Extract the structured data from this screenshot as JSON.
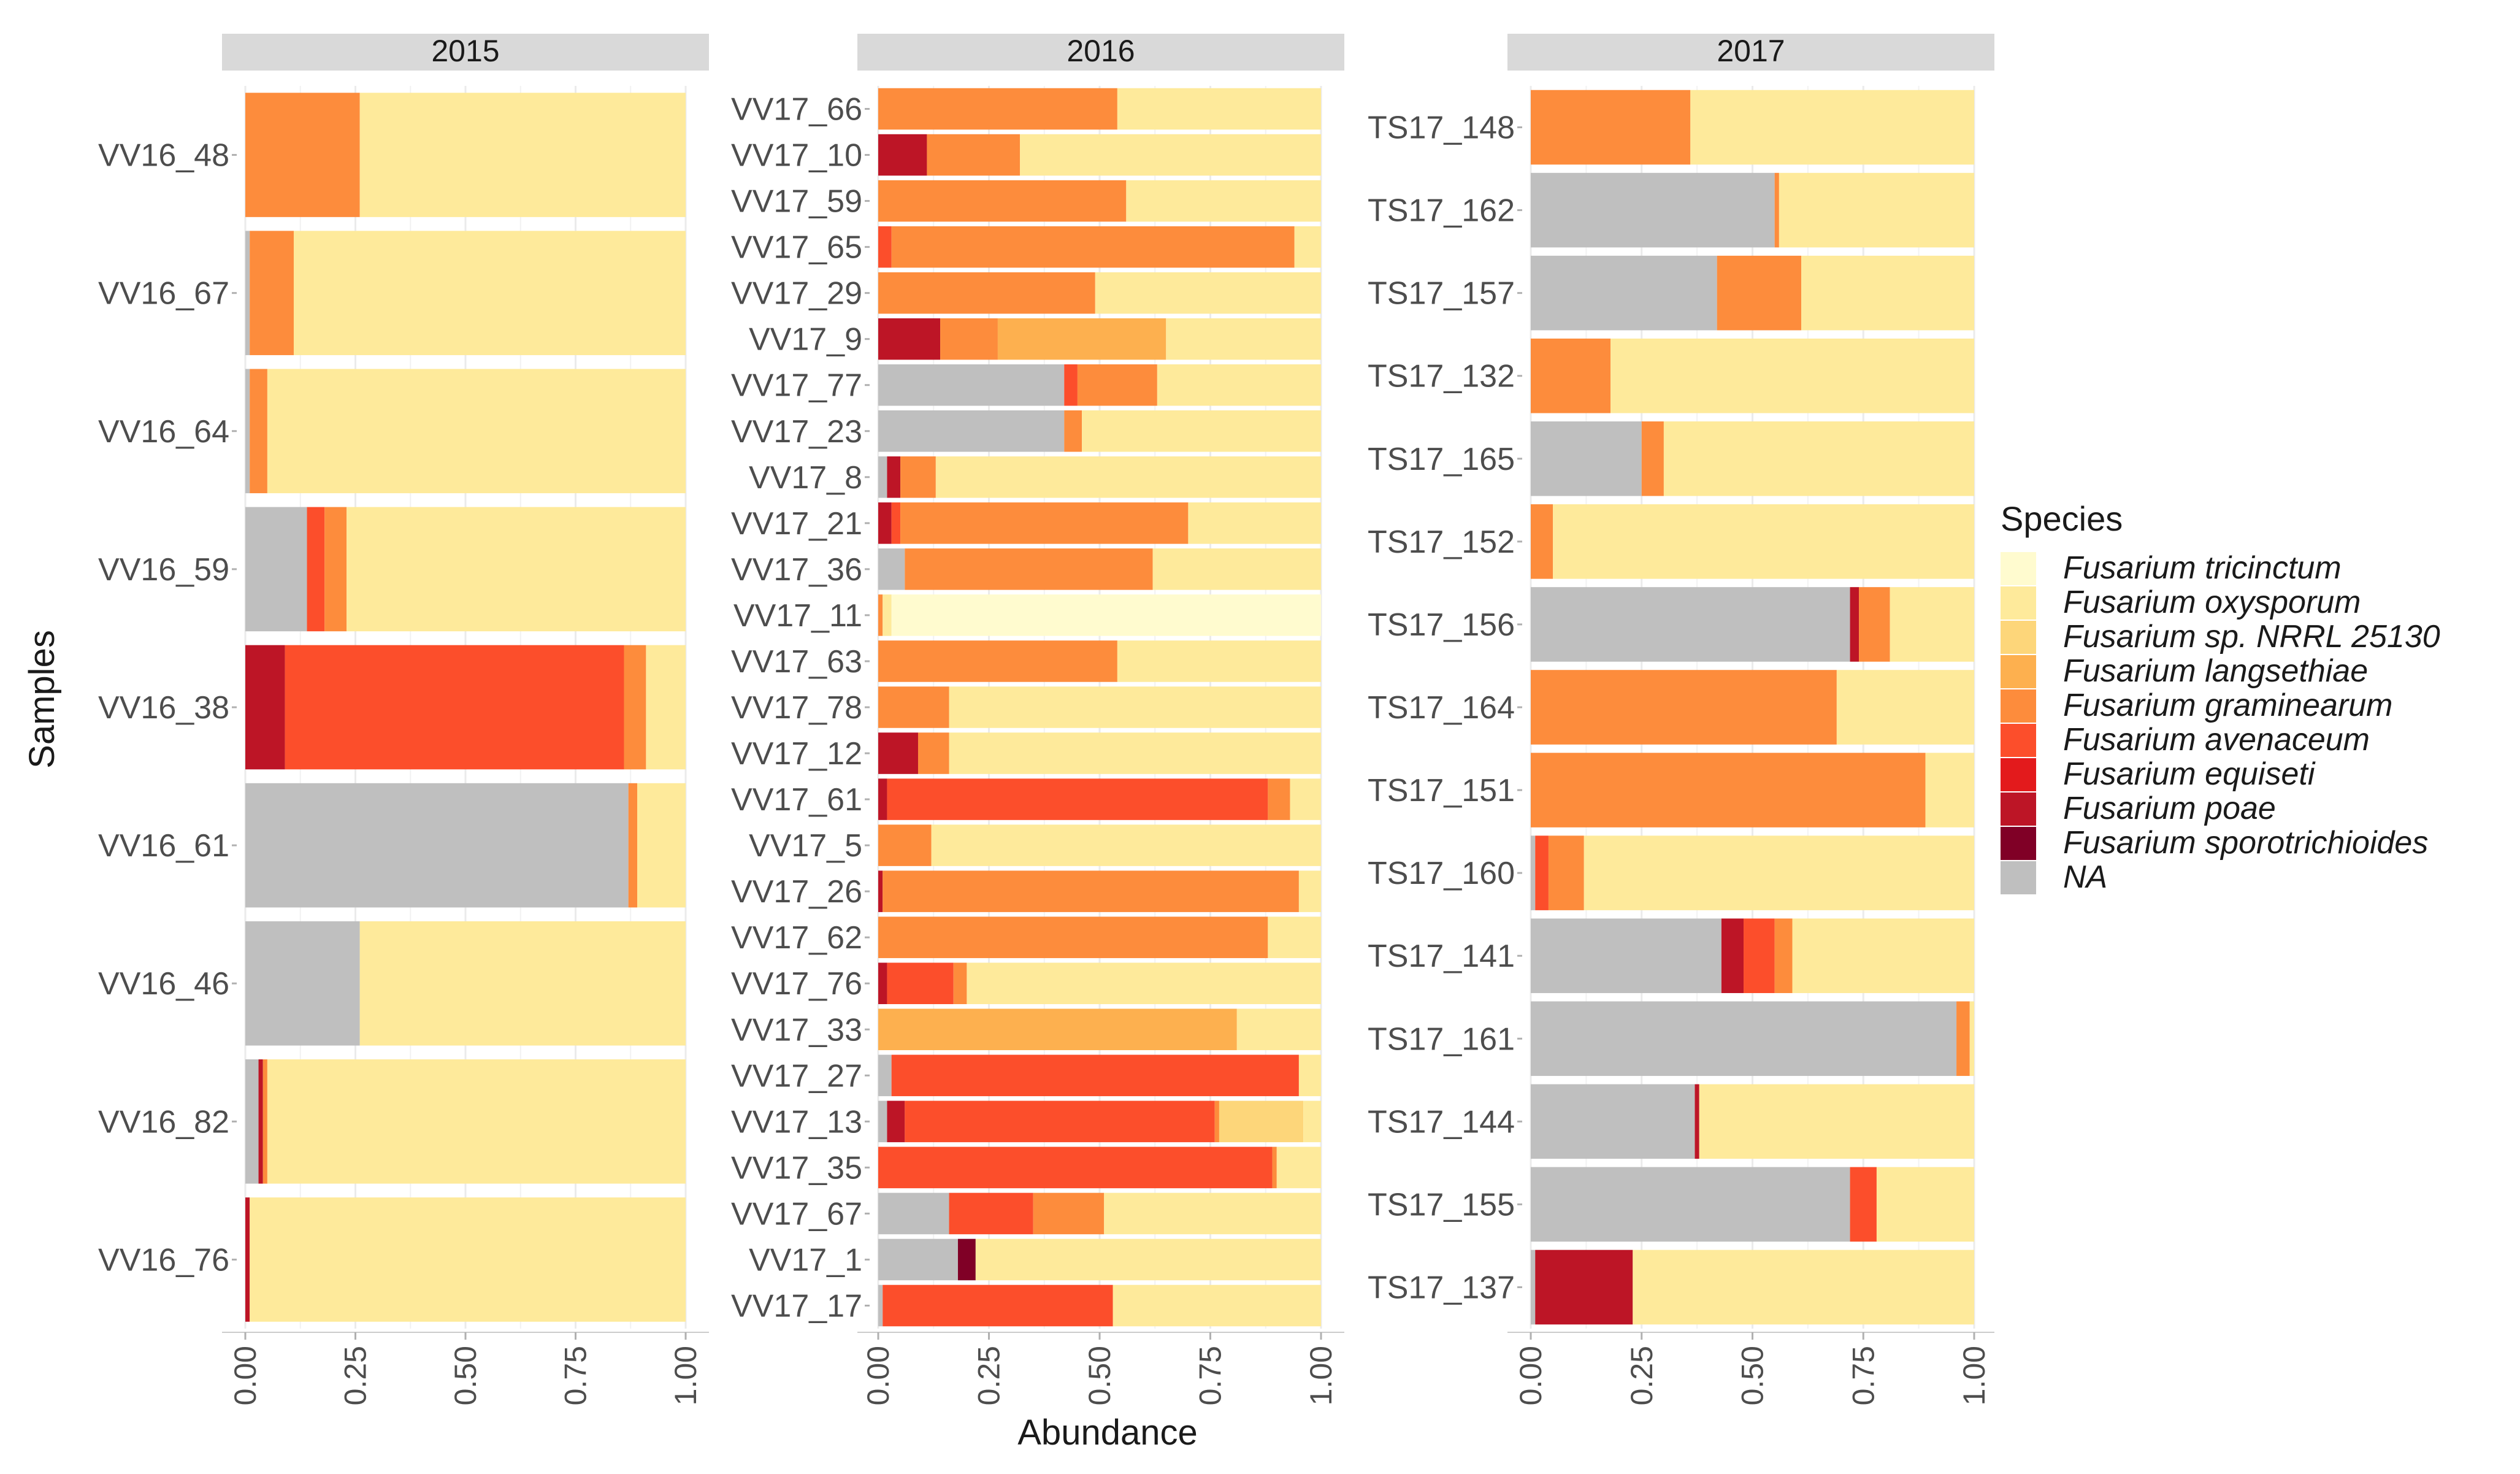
{
  "chart_data": {
    "type": "bar",
    "orientation": "horizontal",
    "stacked": true,
    "xlabel": "Abundance",
    "ylabel": "Samples",
    "xlim": [
      0,
      1
    ],
    "x_ticks": [
      "0.00",
      "0.25",
      "0.50",
      "0.75",
      "1.00"
    ],
    "grid": true,
    "legend_position": "right",
    "legend_title": "Species",
    "species": [
      {
        "name": "Fusarium tricinctum",
        "color": "#FFFBCF"
      },
      {
        "name": "Fusarium oxysporum",
        "color": "#FEEA9B"
      },
      {
        "name": "Fusarium sp. NRRL 25130",
        "color": "#FDD67A"
      },
      {
        "name": "Fusarium langsethiae",
        "color": "#FDB04F"
      },
      {
        "name": "Fusarium graminearum",
        "color": "#FD8C3C"
      },
      {
        "name": "Fusarium avenaceum",
        "color": "#FC4E2B"
      },
      {
        "name": "Fusarium equiseti",
        "color": "#E31A1C"
      },
      {
        "name": "Fusarium poae",
        "color": "#BD1526"
      },
      {
        "name": "Fusarium sporotrichioides",
        "color": "#800026"
      },
      {
        "name": "NA",
        "color": "#BFBFBF"
      }
    ],
    "stack_order": [
      "NA",
      "Fusarium sporotrichioides",
      "Fusarium poae",
      "Fusarium equiseti",
      "Fusarium avenaceum",
      "Fusarium graminearum",
      "Fusarium langsethiae",
      "Fusarium sp. NRRL 25130",
      "Fusarium oxysporum",
      "Fusarium tricinctum"
    ],
    "panels": [
      {
        "title": "2015",
        "samples": [
          {
            "name": "VV16_48",
            "values": {
              "Fusarium graminearum": 0.26,
              "Fusarium oxysporum": 0.74
            }
          },
          {
            "name": "VV16_67",
            "values": {
              "NA": 0.01,
              "Fusarium graminearum": 0.1,
              "Fusarium oxysporum": 0.89
            }
          },
          {
            "name": "VV16_64",
            "values": {
              "NA": 0.01,
              "Fusarium graminearum": 0.04,
              "Fusarium oxysporum": 0.95
            }
          },
          {
            "name": "VV16_59",
            "values": {
              "NA": 0.14,
              "Fusarium avenaceum": 0.04,
              "Fusarium graminearum": 0.05,
              "Fusarium oxysporum": 0.77
            }
          },
          {
            "name": "VV16_38",
            "values": {
              "Fusarium poae": 0.09,
              "Fusarium avenaceum": 0.77,
              "Fusarium graminearum": 0.05,
              "Fusarium oxysporum": 0.09
            }
          },
          {
            "name": "VV16_61",
            "values": {
              "NA": 0.87,
              "Fusarium graminearum": 0.02,
              "Fusarium oxysporum": 0.11
            }
          },
          {
            "name": "VV16_46",
            "values": {
              "NA": 0.26,
              "Fusarium oxysporum": 0.74
            }
          },
          {
            "name": "VV16_82",
            "values": {
              "NA": 0.03,
              "Fusarium poae": 0.01,
              "Fusarium graminearum": 0.01,
              "Fusarium oxysporum": 0.95
            }
          },
          {
            "name": "VV16_76",
            "values": {
              "Fusarium poae": 0.01,
              "Fusarium oxysporum": 0.99
            }
          }
        ]
      },
      {
        "title": "2016",
        "samples": [
          {
            "name": "VV17_66",
            "values": {
              "Fusarium graminearum": 0.54,
              "Fusarium oxysporum": 0.46
            }
          },
          {
            "name": "VV17_10",
            "values": {
              "Fusarium poae": 0.11,
              "Fusarium graminearum": 0.21,
              "Fusarium oxysporum": 0.68
            }
          },
          {
            "name": "VV17_59",
            "values": {
              "Fusarium graminearum": 0.56,
              "Fusarium oxysporum": 0.44
            }
          },
          {
            "name": "VV17_65",
            "values": {
              "Fusarium avenaceum": 0.03,
              "Fusarium graminearum": 0.91,
              "Fusarium oxysporum": 0.06
            }
          },
          {
            "name": "VV17_29",
            "values": {
              "Fusarium graminearum": 0.49,
              "Fusarium oxysporum": 0.51
            }
          },
          {
            "name": "VV17_9",
            "values": {
              "Fusarium poae": 0.14,
              "Fusarium graminearum": 0.13,
              "Fusarium langsethiae": 0.38,
              "Fusarium oxysporum": 0.35
            }
          },
          {
            "name": "VV17_77",
            "values": {
              "NA": 0.42,
              "Fusarium avenaceum": 0.03,
              "Fusarium graminearum": 0.18,
              "Fusarium oxysporum": 0.37
            }
          },
          {
            "name": "VV17_23",
            "values": {
              "NA": 0.42,
              "Fusarium graminearum": 0.04,
              "Fusarium oxysporum": 0.54
            }
          },
          {
            "name": "VV17_8",
            "values": {
              "NA": 0.02,
              "Fusarium poae": 0.03,
              "Fusarium graminearum": 0.08,
              "Fusarium oxysporum": 0.87
            }
          },
          {
            "name": "VV17_21",
            "values": {
              "Fusarium poae": 0.03,
              "Fusarium avenaceum": 0.02,
              "Fusarium graminearum": 0.65,
              "Fusarium oxysporum": 0.3
            }
          },
          {
            "name": "VV17_36",
            "values": {
              "NA": 0.06,
              "Fusarium graminearum": 0.56,
              "Fusarium oxysporum": 0.38
            }
          },
          {
            "name": "VV17_11",
            "values": {
              "Fusarium graminearum": 0.01,
              "Fusarium oxysporum": 0.02,
              "Fusarium tricinctum": 0.97
            }
          },
          {
            "name": "VV17_63",
            "values": {
              "Fusarium graminearum": 0.54,
              "Fusarium oxysporum": 0.46
            }
          },
          {
            "name": "VV17_78",
            "values": {
              "Fusarium graminearum": 0.16,
              "Fusarium oxysporum": 0.84
            }
          },
          {
            "name": "VV17_12",
            "values": {
              "Fusarium poae": 0.09,
              "Fusarium graminearum": 0.07,
              "Fusarium oxysporum": 0.84
            }
          },
          {
            "name": "VV17_61",
            "values": {
              "Fusarium poae": 0.02,
              "Fusarium avenaceum": 0.86,
              "Fusarium graminearum": 0.05,
              "Fusarium oxysporum": 0.07
            }
          },
          {
            "name": "VV17_5",
            "values": {
              "Fusarium graminearum": 0.12,
              "Fusarium oxysporum": 0.88
            }
          },
          {
            "name": "VV17_26",
            "values": {
              "Fusarium poae": 0.01,
              "Fusarium graminearum": 0.94,
              "Fusarium oxysporum": 0.05
            }
          },
          {
            "name": "VV17_62",
            "values": {
              "Fusarium graminearum": 0.88,
              "Fusarium oxysporum": 0.12
            }
          },
          {
            "name": "VV17_76",
            "values": {
              "Fusarium poae": 0.02,
              "Fusarium avenaceum": 0.15,
              "Fusarium graminearum": 0.03,
              "Fusarium oxysporum": 0.8
            }
          },
          {
            "name": "VV17_33",
            "values": {
              "Fusarium langsethiae": 0.81,
              "Fusarium oxysporum": 0.19
            }
          },
          {
            "name": "VV17_27",
            "values": {
              "NA": 0.03,
              "Fusarium avenaceum": 0.92,
              "Fusarium oxysporum": 0.05
            }
          },
          {
            "name": "VV17_13",
            "values": {
              "NA": 0.02,
              "Fusarium poae": 0.04,
              "Fusarium avenaceum": 0.7,
              "Fusarium graminearum": 0.01,
              "Fusarium sp. NRRL 25130": 0.19,
              "Fusarium oxysporum": 0.04
            }
          },
          {
            "name": "VV17_35",
            "values": {
              "Fusarium avenaceum": 0.89,
              "Fusarium graminearum": 0.01,
              "Fusarium oxysporum": 0.1
            }
          },
          {
            "name": "VV17_67",
            "values": {
              "NA": 0.16,
              "Fusarium avenaceum": 0.19,
              "Fusarium graminearum": 0.16,
              "Fusarium oxysporum": 0.49
            }
          },
          {
            "name": "VV17_1",
            "values": {
              "NA": 0.18,
              "Fusarium sporotrichioides": 0.04,
              "Fusarium oxysporum": 0.78
            }
          },
          {
            "name": "VV17_17",
            "values": {
              "NA": 0.01,
              "Fusarium avenaceum": 0.52,
              "Fusarium oxysporum": 0.47
            }
          }
        ]
      },
      {
        "title": "2017",
        "samples": [
          {
            "name": "TS17_148",
            "values": {
              "Fusarium graminearum": 0.36,
              "Fusarium oxysporum": 0.64
            }
          },
          {
            "name": "TS17_162",
            "values": {
              "NA": 0.55,
              "Fusarium graminearum": 0.01,
              "Fusarium oxysporum": 0.44
            }
          },
          {
            "name": "TS17_157",
            "values": {
              "NA": 0.42,
              "Fusarium graminearum": 0.19,
              "Fusarium oxysporum": 0.39
            }
          },
          {
            "name": "TS17_132",
            "values": {
              "Fusarium graminearum": 0.18,
              "Fusarium oxysporum": 0.82
            }
          },
          {
            "name": "TS17_165",
            "values": {
              "NA": 0.25,
              "Fusarium graminearum": 0.05,
              "Fusarium oxysporum": 0.7
            }
          },
          {
            "name": "TS17_152",
            "values": {
              "Fusarium graminearum": 0.05,
              "Fusarium oxysporum": 0.95
            }
          },
          {
            "name": "TS17_156",
            "values": {
              "NA": 0.72,
              "Fusarium poae": 0.02,
              "Fusarium graminearum": 0.07,
              "Fusarium oxysporum": 0.19
            }
          },
          {
            "name": "TS17_164",
            "values": {
              "Fusarium graminearum": 0.69,
              "Fusarium oxysporum": 0.31
            }
          },
          {
            "name": "TS17_151",
            "values": {
              "Fusarium graminearum": 0.89,
              "Fusarium oxysporum": 0.11
            }
          },
          {
            "name": "TS17_160",
            "values": {
              "NA": 0.01,
              "Fusarium avenaceum": 0.03,
              "Fusarium graminearum": 0.08,
              "Fusarium oxysporum": 0.88
            }
          },
          {
            "name": "TS17_141",
            "values": {
              "NA": 0.43,
              "Fusarium poae": 0.05,
              "Fusarium avenaceum": 0.07,
              "Fusarium graminearum": 0.04,
              "Fusarium oxysporum": 0.41
            }
          },
          {
            "name": "TS17_161",
            "values": {
              "NA": 0.96,
              "Fusarium graminearum": 0.03,
              "Fusarium oxysporum": 0.01
            }
          },
          {
            "name": "TS17_144",
            "values": {
              "NA": 0.37,
              "Fusarium poae": 0.01,
              "Fusarium oxysporum": 0.62
            }
          },
          {
            "name": "TS17_155",
            "values": {
              "NA": 0.72,
              "Fusarium avenaceum": 0.06,
              "Fusarium oxysporum": 0.22
            }
          },
          {
            "name": "TS17_137",
            "values": {
              "NA": 0.01,
              "Fusarium poae": 0.22,
              "Fusarium oxysporum": 0.77
            }
          }
        ]
      }
    ]
  }
}
